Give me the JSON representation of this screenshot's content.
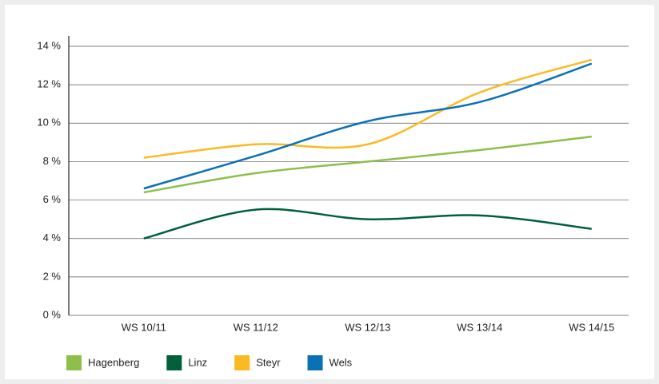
{
  "chart_data": {
    "type": "line",
    "categories": [
      "WS 10/11",
      "WS 11/12",
      "WS 12/13",
      "WS 13/14",
      "WS 14/15"
    ],
    "series": [
      {
        "name": "Hagenberg",
        "color": "#8dbf4a",
        "values": [
          6.4,
          7.4,
          8.0,
          8.6,
          9.3
        ]
      },
      {
        "name": "Linz",
        "color": "#00603a",
        "values": [
          4.0,
          5.5,
          5.0,
          5.2,
          4.5
        ]
      },
      {
        "name": "Steyr",
        "color": "#fbba22",
        "values": [
          8.2,
          8.9,
          8.9,
          11.6,
          13.3
        ]
      },
      {
        "name": "Wels",
        "color": "#0b71b7",
        "values": [
          6.6,
          8.3,
          10.1,
          11.1,
          13.1
        ]
      }
    ],
    "ylim": [
      0,
      14
    ],
    "yticks": [
      {
        "value": 0,
        "label": "0 %"
      },
      {
        "value": 2,
        "label": "2 %"
      },
      {
        "value": 4,
        "label": "4 %"
      },
      {
        "value": 6,
        "label": "6 %"
      },
      {
        "value": 8,
        "label": "8 %"
      },
      {
        "value": 10,
        "label": "10 %"
      },
      {
        "value": 12,
        "label": "12 %"
      },
      {
        "value": 14,
        "label": "14 %"
      }
    ],
    "grid": true
  }
}
